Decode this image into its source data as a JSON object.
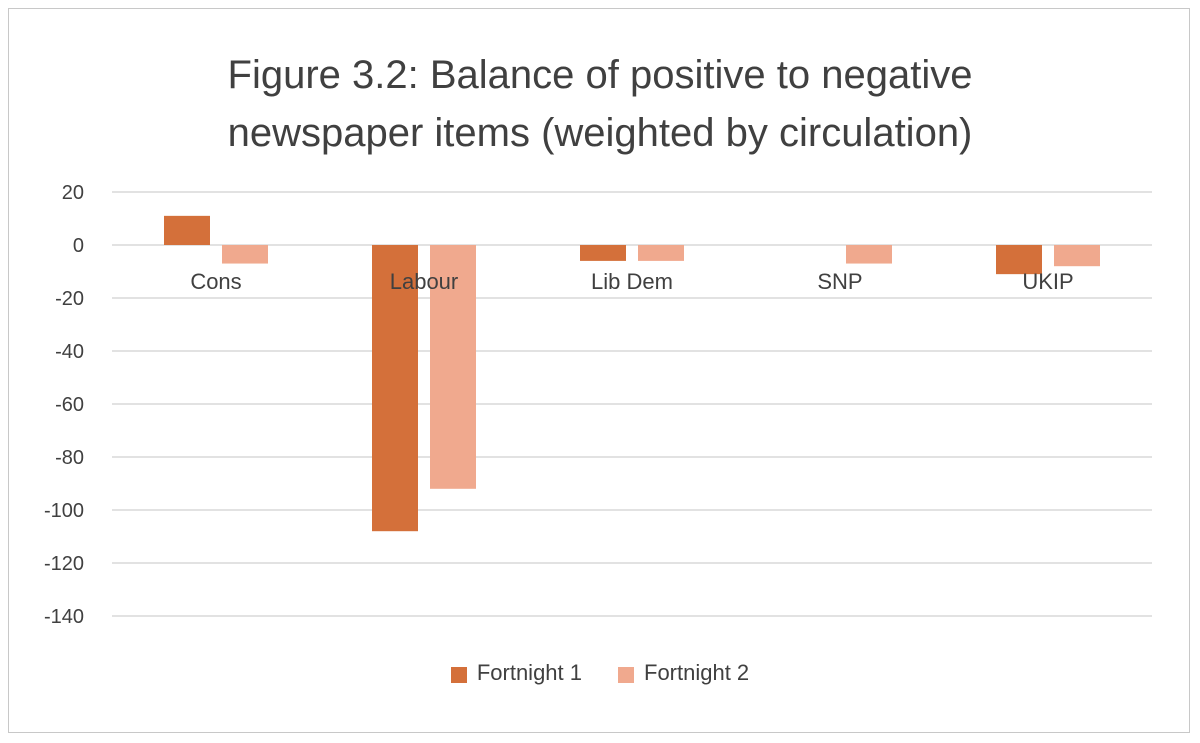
{
  "chart_data": {
    "type": "bar",
    "title_lines": [
      "Figure 3.2: Balance of positive to negative",
      "newspaper items (weighted by circulation)"
    ],
    "categories": [
      "Cons",
      "Labour",
      "Lib Dem",
      "SNP",
      "UKIP"
    ],
    "series": [
      {
        "name": "Fortnight 1",
        "color": "#D4703A",
        "values": [
          11,
          -108,
          -6,
          0,
          -11
        ]
      },
      {
        "name": "Fortnight 2",
        "color": "#F0A98E",
        "values": [
          -7,
          -92,
          -6,
          -7,
          -8
        ]
      }
    ],
    "yticks": [
      20,
      0,
      -20,
      -40,
      -60,
      -80,
      -100,
      -120,
      -140
    ],
    "ylim": [
      -140,
      20
    ],
    "xlabel": "",
    "ylabel": "",
    "grid": true,
    "legend_position": "bottom"
  }
}
